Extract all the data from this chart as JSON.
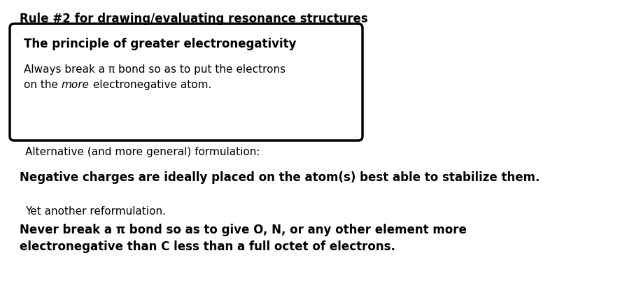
{
  "bg_color": "#ffffff",
  "title_text": "Rule #2 for drawing/evaluating resonance structures",
  "box_title": "The principle of greater electronegativity",
  "box_line1": "Always break a π bond so as to put the electrons",
  "box_line2_normal1": "on the ",
  "box_line2_italic": "more",
  "box_line2_normal2": " electronegative atom.",
  "alt_text": "Alternative (and more general) formulation:",
  "neg_text": "Negative charges are ideally placed on the atom(s) best able to stabilize them.",
  "yet_text": "Yet another reformulation.",
  "never_line1": "Never break a π bond so as to give O, N, or any other element more",
  "never_line2": "electronegative than C less than a full octet of electrons."
}
